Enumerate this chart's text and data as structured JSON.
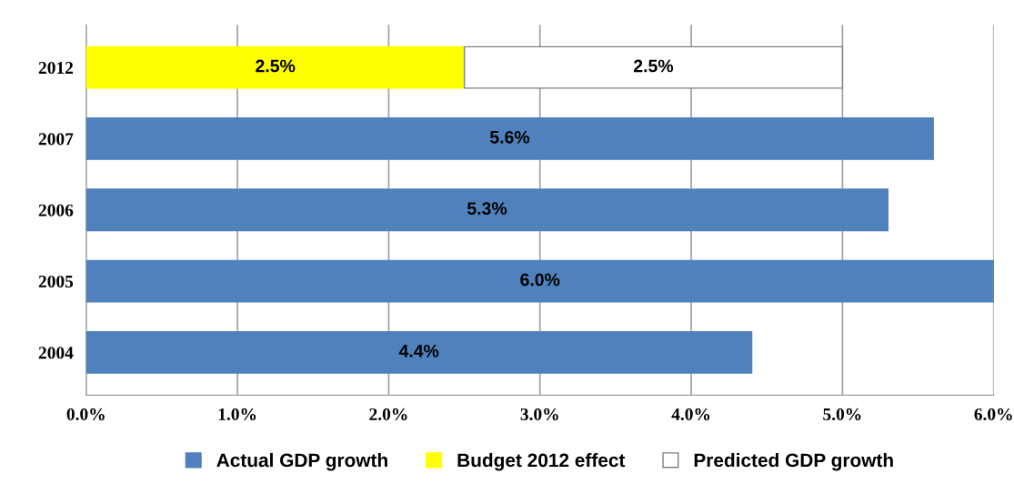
{
  "chart_data": {
    "type": "bar",
    "orientation": "horizontal",
    "stacked": true,
    "categories": [
      "2012",
      "2007",
      "2006",
      "2005",
      "2004"
    ],
    "series": [
      {
        "name": "Actual GDP growth",
        "color": "#4f81bd",
        "values": [
          null,
          5.6,
          5.3,
          6.0,
          4.4
        ],
        "value_labels": [
          null,
          "5.6%",
          "5.3%",
          "6.0%",
          "4.4%"
        ]
      },
      {
        "name": "Budget 2012 effect",
        "color": "#ffff00",
        "values": [
          2.5,
          null,
          null,
          null,
          null
        ],
        "value_labels": [
          "2.5%",
          null,
          null,
          null,
          null
        ]
      },
      {
        "name": "Predicted GDP growth",
        "color": "#ffffff",
        "values": [
          2.5,
          null,
          null,
          null,
          null
        ],
        "value_labels": [
          "2.5%",
          null,
          null,
          null,
          null
        ]
      }
    ],
    "xlim": [
      0,
      6
    ],
    "xticks": [
      {
        "value": 0,
        "label": "0.0%"
      },
      {
        "value": 1,
        "label": "1.0%"
      },
      {
        "value": 2,
        "label": "2.0%"
      },
      {
        "value": 3,
        "label": "3.0%"
      },
      {
        "value": 4,
        "label": "4.0%"
      },
      {
        "value": 5,
        "label": "5.0%"
      },
      {
        "value": 6,
        "label": "6.0%"
      }
    ],
    "grid": "x",
    "legend": "bottom"
  }
}
